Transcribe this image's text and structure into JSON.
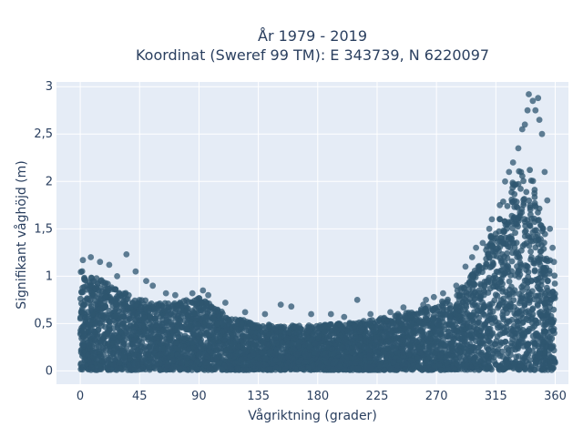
{
  "chart_data": {
    "type": "scatter",
    "title": "År 1979 - 2019",
    "subtitle": "Koordinat (Sweref 99 TM): E 343739, N 6220097",
    "xlabel": "Vågriktning (grader)",
    "ylabel": "Signifikant våghöjd (m)",
    "xlim": [
      -18,
      370
    ],
    "ylim": [
      -0.14,
      3.05
    ],
    "x_ticks": [
      0,
      45,
      90,
      135,
      180,
      225,
      270,
      315,
      360
    ],
    "x_tick_labels": [
      "0",
      "45",
      "90",
      "135",
      "180",
      "225",
      "270",
      "315",
      "360"
    ],
    "y_ticks": [
      0,
      0.5,
      1,
      1.5,
      2,
      2.5,
      3
    ],
    "y_tick_labels": [
      "0",
      "0,5",
      "1",
      "1,5",
      "2",
      "2,5",
      "3"
    ],
    "grid": true,
    "series": [
      {
        "color": "#2e5670",
        "envelope_x": [
          0,
          10,
          20,
          30,
          40,
          50,
          60,
          70,
          80,
          90,
          100,
          110,
          120,
          135,
          150,
          165,
          180,
          195,
          210,
          225,
          240,
          255,
          270,
          280,
          290,
          295,
          300,
          305,
          310,
          315,
          320,
          325,
          330,
          335,
          340,
          345,
          350,
          355,
          360
        ],
        "envelope_ymax": [
          1.1,
          1.0,
          0.95,
          0.88,
          0.8,
          0.75,
          0.72,
          0.72,
          0.76,
          0.78,
          0.7,
          0.6,
          0.55,
          0.5,
          0.48,
          0.48,
          0.48,
          0.5,
          0.52,
          0.55,
          0.6,
          0.65,
          0.7,
          0.8,
          0.9,
          1.0,
          1.1,
          1.2,
          1.4,
          1.6,
          1.8,
          1.95,
          2.1,
          2.25,
          2.2,
          2.0,
          1.6,
          1.3,
          1.0
        ],
        "outliers": [
          [
            2,
            1.17
          ],
          [
            8,
            1.2
          ],
          [
            15,
            1.15
          ],
          [
            22,
            1.12
          ],
          [
            35,
            1.23
          ],
          [
            42,
            1.05
          ],
          [
            28,
            1.0
          ],
          [
            50,
            0.95
          ],
          [
            55,
            0.9
          ],
          [
            65,
            0.82
          ],
          [
            72,
            0.8
          ],
          [
            85,
            0.82
          ],
          [
            93,
            0.85
          ],
          [
            97,
            0.8
          ],
          [
            110,
            0.72
          ],
          [
            125,
            0.62
          ],
          [
            140,
            0.6
          ],
          [
            152,
            0.7
          ],
          [
            160,
            0.68
          ],
          [
            175,
            0.6
          ],
          [
            190,
            0.6
          ],
          [
            200,
            0.57
          ],
          [
            210,
            0.75
          ],
          [
            220,
            0.6
          ],
          [
            235,
            0.62
          ],
          [
            245,
            0.67
          ],
          [
            260,
            0.7
          ],
          [
            262,
            0.75
          ],
          [
            268,
            0.78
          ],
          [
            275,
            0.82
          ],
          [
            285,
            0.9
          ],
          [
            292,
            1.1
          ],
          [
            297,
            1.2
          ],
          [
            300,
            1.3
          ],
          [
            305,
            1.35
          ],
          [
            310,
            1.5
          ],
          [
            312,
            1.6
          ],
          [
            318,
            1.75
          ],
          [
            322,
            2.0
          ],
          [
            325,
            2.1
          ],
          [
            328,
            2.2
          ],
          [
            332,
            2.35
          ],
          [
            335,
            2.55
          ],
          [
            337,
            2.6
          ],
          [
            339,
            2.75
          ],
          [
            340,
            2.92
          ],
          [
            343,
            2.85
          ],
          [
            345,
            2.75
          ],
          [
            347,
            2.88
          ],
          [
            348,
            2.65
          ],
          [
            350,
            2.5
          ],
          [
            352,
            2.1
          ],
          [
            354,
            1.8
          ],
          [
            356,
            1.5
          ],
          [
            358,
            1.3
          ],
          [
            359,
            1.15
          ]
        ]
      }
    ]
  }
}
